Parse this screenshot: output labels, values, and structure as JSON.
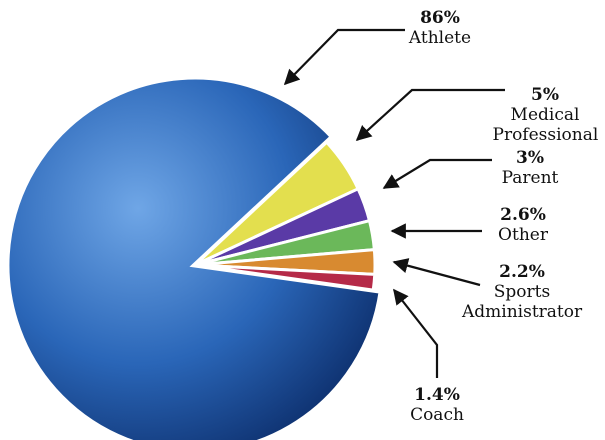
{
  "chart_data": {
    "type": "pie",
    "categories": [
      "Athlete",
      "Medical Professional",
      "Parent",
      "Other",
      "Sports Administrator",
      "Coach"
    ],
    "values": [
      86,
      5,
      3,
      2.6,
      2.2,
      1.4
    ],
    "value_labels": [
      "86%",
      "5%",
      "3%",
      "2.6%",
      "2.2%",
      "1.4%"
    ],
    "colors": [
      "#2a66b8",
      "#e3df4e",
      "#5a3aa6",
      "#6bb85a",
      "#d88a30",
      "#b52a48"
    ]
  }
}
